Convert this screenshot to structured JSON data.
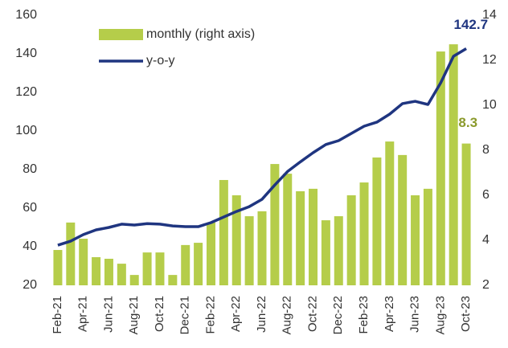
{
  "chart_data": {
    "type": "combo",
    "categories": [
      "Feb-21",
      null,
      "Apr-21",
      null,
      "Jun-21",
      null,
      "Aug-21",
      null,
      "Oct-21",
      null,
      "Dec-21",
      null,
      "Feb-22",
      null,
      "Apr-22",
      null,
      "Jun-22",
      null,
      "Aug-22",
      null,
      "Oct-22",
      null,
      "Dec-22",
      null,
      "Feb-23",
      null,
      "Apr-23",
      null,
      "Jun-23",
      null,
      "Aug-23",
      null,
      "Oct-23"
    ],
    "series": [
      {
        "name": "monthly (right axis)",
        "type": "bar",
        "axis": "y2",
        "color": "#b5cd4a",
        "values": [
          3.57,
          4.79,
          4.07,
          3.25,
          3.18,
          2.96,
          2.46,
          3.46,
          3.46,
          2.46,
          3.79,
          3.89,
          4.79,
          6.68,
          6.0,
          5.07,
          5.29,
          7.39,
          6.96,
          6.18,
          6.29,
          4.89,
          5.07,
          6.0,
          6.57,
          7.68,
          8.39,
          7.79,
          6.0,
          6.29,
          12.39,
          12.71,
          8.3
        ],
        "value_labels": [
          null,
          null,
          null,
          null,
          null,
          null,
          null,
          null,
          null,
          null,
          null,
          null,
          null,
          null,
          null,
          null,
          null,
          null,
          null,
          null,
          null,
          null,
          null,
          null,
          null,
          null,
          null,
          null,
          null,
          null,
          null,
          null,
          "8.3"
        ]
      },
      {
        "name": "y-o-y",
        "type": "line",
        "color": "#1f3580",
        "values": [
          40.8,
          42.9,
          46.3,
          48.75,
          50,
          51.7,
          51.25,
          52,
          51.7,
          50.8,
          50.4,
          50.4,
          52.5,
          55.4,
          58.3,
          60.8,
          64.6,
          72,
          79,
          84,
          88.75,
          93,
          95,
          98.75,
          102.5,
          104.6,
          108.75,
          114.2,
          115.4,
          113.75,
          125,
          138.75,
          142.7
        ],
        "value_labels": [
          null,
          null,
          null,
          null,
          null,
          null,
          null,
          null,
          null,
          null,
          null,
          null,
          null,
          null,
          null,
          null,
          null,
          null,
          null,
          null,
          null,
          null,
          null,
          null,
          null,
          null,
          null,
          null,
          null,
          null,
          null,
          null,
          "142.7"
        ]
      }
    ],
    "ylim": [
      20,
      160
    ],
    "yticks": [
      20,
      40,
      60,
      80,
      100,
      120,
      140,
      160
    ],
    "y2lim": [
      2,
      14
    ],
    "y2ticks": [
      2,
      4,
      6,
      8,
      10,
      12,
      14
    ],
    "legend": "upper left"
  }
}
